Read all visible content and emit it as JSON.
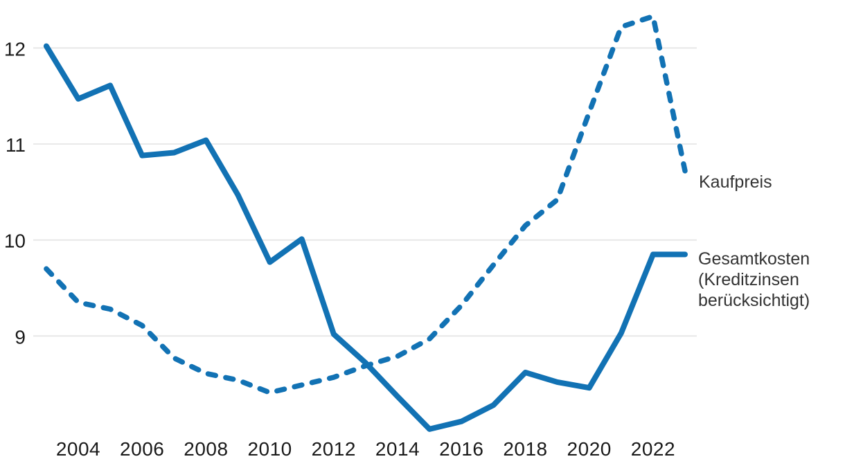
{
  "chart_data": {
    "type": "line",
    "title": "",
    "xlabel": "",
    "ylabel": "",
    "x": [
      2003,
      2004,
      2005,
      2006,
      2007,
      2008,
      2009,
      2010,
      2011,
      2012,
      2013,
      2014,
      2015,
      2016,
      2017,
      2018,
      2019,
      2020,
      2021,
      2022,
      2023
    ],
    "series": [
      {
        "id": "kaufpreis",
        "name": "Kaufpreis",
        "style": "dashed",
        "color": "#1272b4",
        "values": [
          9.7,
          9.35,
          9.28,
          9.11,
          8.77,
          8.61,
          8.54,
          8.41,
          8.49,
          8.57,
          8.69,
          8.79,
          8.97,
          9.32,
          9.74,
          10.15,
          10.42,
          11.33,
          12.22,
          12.33,
          10.72
        ]
      },
      {
        "id": "gesamtkosten",
        "name": "Gesamtkosten (Kreditzinsen berücksichtigt)",
        "style": "solid",
        "color": "#1272b4",
        "values": [
          12.02,
          11.47,
          11.61,
          10.88,
          10.91,
          11.04,
          10.47,
          9.77,
          10.01,
          9.02,
          8.72,
          8.37,
          8.03,
          8.11,
          8.28,
          8.62,
          8.52,
          8.46,
          9.03,
          9.85,
          9.85
        ]
      }
    ],
    "yticks": [
      9,
      10,
      11,
      12
    ],
    "xticks": [
      2004,
      2006,
      2008,
      2010,
      2012,
      2014,
      2016,
      2018,
      2020,
      2022
    ],
    "ylim": [
      7.625,
      12.5
    ],
    "xlim": [
      2001.55,
      2028.01
    ],
    "grid": "horizontal-only",
    "legend_position": "right-of-line-ends",
    "colors": {
      "line": "#1272b4",
      "gridline": "#e2e2e2",
      "tick_text": "#1a1a1a",
      "legend_text": "#333333",
      "background": "#ffffff"
    }
  }
}
